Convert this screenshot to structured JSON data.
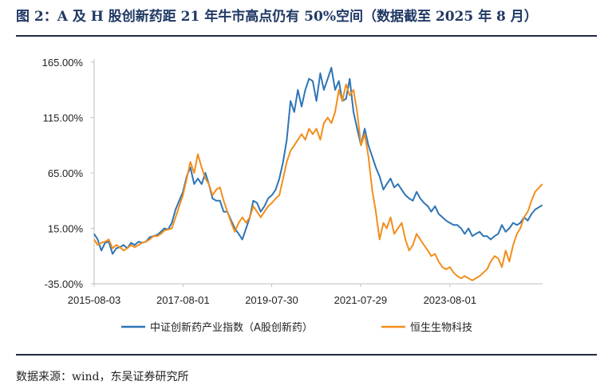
{
  "figure": {
    "title": "图 2：A 及 H 股创新药距 21 年牛市高点仍有 50%空间（数据截至 2025 年 8 月）",
    "source": "数据来源：wind，东吴证券研究所"
  },
  "chart_data": {
    "type": "line",
    "title": "",
    "xlabel": "",
    "ylabel": "",
    "ylim": [
      -35,
      165
    ],
    "y_ticks": [
      "165.00%",
      "115.00%",
      "65.00%",
      "15.00%",
      "-35.00%"
    ],
    "y_tick_values": [
      165,
      115,
      65,
      15,
      -35
    ],
    "x_ticks": [
      "2015-08-03",
      "2017-08-01",
      "2019-07-30",
      "2021-07-29",
      "2023-08-01"
    ],
    "x_range": [
      "2015-08-03",
      "2025-08-31"
    ],
    "grid": false,
    "legend_position": "bottom",
    "series": [
      {
        "name": "中证创新药产业指数（A股创新药）",
        "color": "#2e75b6",
        "x": [
          "2015-08-03",
          "2015-09-01",
          "2015-10-01",
          "2015-11-01",
          "2015-12-01",
          "2016-01-01",
          "2016-02-01",
          "2016-03-01",
          "2016-04-01",
          "2016-05-01",
          "2016-06-01",
          "2016-07-01",
          "2016-08-01",
          "2016-09-01",
          "2016-10-01",
          "2016-11-01",
          "2016-12-01",
          "2017-01-01",
          "2017-02-01",
          "2017-03-01",
          "2017-04-01",
          "2017-05-01",
          "2017-06-01",
          "2017-07-01",
          "2017-08-01",
          "2017-09-01",
          "2017-10-01",
          "2017-11-01",
          "2017-12-01",
          "2018-01-01",
          "2018-02-01",
          "2018-03-01",
          "2018-04-01",
          "2018-05-01",
          "2018-06-01",
          "2018-07-01",
          "2018-08-01",
          "2018-09-01",
          "2018-10-01",
          "2018-11-01",
          "2018-12-01",
          "2019-01-01",
          "2019-02-01",
          "2019-03-01",
          "2019-04-01",
          "2019-05-01",
          "2019-06-01",
          "2019-07-01",
          "2019-08-01",
          "2019-09-01",
          "2019-10-01",
          "2019-11-01",
          "2019-12-01",
          "2020-01-01",
          "2020-02-01",
          "2020-03-01",
          "2020-04-01",
          "2020-05-01",
          "2020-06-01",
          "2020-07-01",
          "2020-08-01",
          "2020-09-01",
          "2020-10-01",
          "2020-11-01",
          "2020-12-01",
          "2021-01-01",
          "2021-02-01",
          "2021-03-01",
          "2021-04-01",
          "2021-05-01",
          "2021-06-01",
          "2021-07-01",
          "2021-08-01",
          "2021-09-01",
          "2021-10-01",
          "2021-11-01",
          "2021-12-01",
          "2022-01-01",
          "2022-02-01",
          "2022-03-01",
          "2022-04-01",
          "2022-05-01",
          "2022-06-01",
          "2022-07-01",
          "2022-08-01",
          "2022-09-01",
          "2022-10-01",
          "2022-11-01",
          "2022-12-01",
          "2023-01-01",
          "2023-02-01",
          "2023-03-01",
          "2023-04-01",
          "2023-05-01",
          "2023-06-01",
          "2023-07-01",
          "2023-08-01",
          "2023-09-01",
          "2023-10-01",
          "2023-11-01",
          "2023-12-01",
          "2024-01-01",
          "2024-02-01",
          "2024-03-01",
          "2024-04-01",
          "2024-05-01",
          "2024-06-01",
          "2024-07-01",
          "2024-08-01",
          "2024-09-01",
          "2024-10-01",
          "2024-11-01",
          "2024-12-01",
          "2025-01-01",
          "2025-02-01",
          "2025-03-01",
          "2025-04-01",
          "2025-05-01",
          "2025-06-01",
          "2025-07-01",
          "2025-08-29"
        ],
        "values": [
          10,
          5,
          -5,
          2,
          3,
          -8,
          -3,
          -2,
          0,
          -3,
          2,
          0,
          3,
          2,
          3,
          7,
          8,
          9,
          12,
          15,
          14,
          20,
          32,
          40,
          48,
          62,
          70,
          55,
          60,
          55,
          65,
          55,
          42,
          40,
          40,
          30,
          30,
          22,
          15,
          10,
          5,
          15,
          25,
          40,
          38,
          30,
          35,
          42,
          45,
          50,
          60,
          75,
          95,
          130,
          120,
          140,
          125,
          140,
          150,
          148,
          130,
          155,
          140,
          150,
          160,
          140,
          148,
          130,
          132,
          150,
          120,
          105,
          90,
          105,
          90,
          80,
          70,
          62,
          50,
          55,
          60,
          52,
          55,
          50,
          45,
          42,
          40,
          48,
          42,
          38,
          35,
          30,
          35,
          28,
          25,
          22,
          20,
          18,
          18,
          15,
          10,
          15,
          8,
          10,
          12,
          8,
          8,
          5,
          8,
          10,
          18,
          12,
          15,
          20,
          18,
          20,
          25,
          22,
          28,
          32,
          36
        ]
      },
      {
        "name": "恒生生物科技",
        "color": "#f28e1c",
        "x": [
          "2015-08-03",
          "2015-09-01",
          "2015-10-01",
          "2015-11-01",
          "2015-12-01",
          "2016-01-01",
          "2016-02-01",
          "2016-03-01",
          "2016-04-01",
          "2016-05-01",
          "2016-06-01",
          "2016-07-01",
          "2016-08-01",
          "2016-09-01",
          "2016-10-01",
          "2016-11-01",
          "2016-12-01",
          "2017-01-01",
          "2017-02-01",
          "2017-03-01",
          "2017-04-01",
          "2017-05-01",
          "2017-06-01",
          "2017-07-01",
          "2017-08-01",
          "2017-09-01",
          "2017-10-01",
          "2017-11-01",
          "2017-12-01",
          "2018-01-01",
          "2018-02-01",
          "2018-03-01",
          "2018-04-01",
          "2018-05-01",
          "2018-06-01",
          "2018-07-01",
          "2018-08-01",
          "2018-09-01",
          "2018-10-01",
          "2018-11-01",
          "2018-12-01",
          "2019-01-01",
          "2019-02-01",
          "2019-03-01",
          "2019-04-01",
          "2019-05-01",
          "2019-06-01",
          "2019-07-01",
          "2019-08-01",
          "2019-09-01",
          "2019-10-01",
          "2019-11-01",
          "2019-12-01",
          "2020-01-01",
          "2020-02-01",
          "2020-03-01",
          "2020-04-01",
          "2020-05-01",
          "2020-06-01",
          "2020-07-01",
          "2020-08-01",
          "2020-09-01",
          "2020-10-01",
          "2020-11-01",
          "2020-12-01",
          "2021-01-01",
          "2021-02-01",
          "2021-03-01",
          "2021-04-01",
          "2021-05-01",
          "2021-06-01",
          "2021-07-01",
          "2021-08-01",
          "2021-09-01",
          "2021-10-01",
          "2021-11-01",
          "2021-12-01",
          "2022-01-01",
          "2022-02-01",
          "2022-03-01",
          "2022-04-01",
          "2022-05-01",
          "2022-06-01",
          "2022-07-01",
          "2022-08-01",
          "2022-09-01",
          "2022-10-01",
          "2022-11-01",
          "2022-12-01",
          "2023-01-01",
          "2023-02-01",
          "2023-03-01",
          "2023-04-01",
          "2023-05-01",
          "2023-06-01",
          "2023-07-01",
          "2023-08-01",
          "2023-09-01",
          "2023-10-01",
          "2023-11-01",
          "2023-12-01",
          "2024-01-01",
          "2024-02-01",
          "2024-03-01",
          "2024-04-01",
          "2024-05-01",
          "2024-06-01",
          "2024-07-01",
          "2024-08-01",
          "2024-09-01",
          "2024-10-01",
          "2024-11-01",
          "2024-12-01",
          "2025-01-01",
          "2025-02-01",
          "2025-03-01",
          "2025-04-01",
          "2025-05-01",
          "2025-06-01",
          "2025-07-01",
          "2025-08-29"
        ],
        "values": [
          5,
          0,
          2,
          3,
          5,
          -3,
          0,
          -2,
          -5,
          -3,
          0,
          -2,
          0,
          2,
          3,
          5,
          8,
          8,
          10,
          13,
          14,
          15,
          25,
          35,
          45,
          60,
          75,
          65,
          82,
          70,
          60,
          55,
          45,
          50,
          52,
          40,
          30,
          20,
          12,
          20,
          25,
          20,
          25,
          35,
          30,
          25,
          30,
          35,
          38,
          42,
          45,
          60,
          75,
          85,
          90,
          95,
          100,
          95,
          105,
          100,
          105,
          95,
          110,
          115,
          110,
          120,
          140,
          130,
          145,
          135,
          140,
          120,
          90,
          100,
          80,
          50,
          30,
          5,
          20,
          15,
          25,
          10,
          15,
          20,
          5,
          -5,
          0,
          10,
          5,
          0,
          -5,
          -10,
          -8,
          -15,
          -20,
          -22,
          -20,
          -25,
          -28,
          -30,
          -28,
          -30,
          -32,
          -30,
          -28,
          -25,
          -22,
          -15,
          -10,
          -12,
          -20,
          -5,
          -15,
          0,
          10,
          15,
          25,
          30,
          40,
          48,
          55
        ]
      }
    ]
  }
}
